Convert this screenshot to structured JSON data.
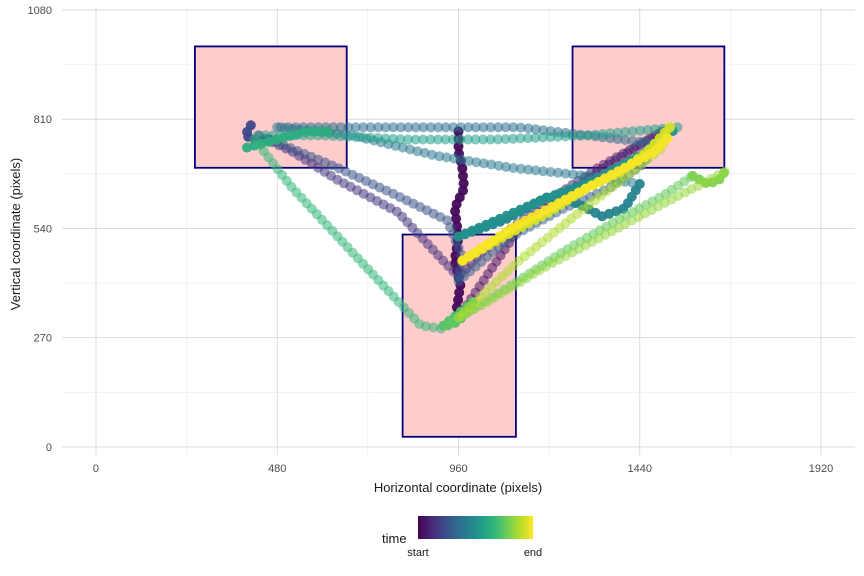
{
  "chart_data": {
    "type": "scatter",
    "xlabel": "Horizontal coordinate (pixels)",
    "ylabel": "Vertical coordinate (pixels)",
    "xlim": [
      -90,
      2010
    ],
    "ylim": [
      -20,
      1085
    ],
    "x_ticks": [
      0,
      480,
      960,
      1440,
      1920
    ],
    "y_ticks": [
      0,
      270,
      540,
      810,
      1080
    ],
    "grid": true,
    "legend": {
      "title": "time",
      "start_label": "start",
      "end_label": "end",
      "position": "bottom"
    },
    "colors": {
      "rect_fill": "#ffcccc",
      "rect_stroke": "#00007f",
      "viridis": [
        "#440154",
        "#482878",
        "#3e4989",
        "#31688e",
        "#26828e",
        "#1f9e89",
        "#35b779",
        "#6ece58",
        "#b5de2b",
        "#fde725"
      ]
    },
    "rectangles": [
      {
        "x0": 262,
        "x1": 664,
        "y0": 690,
        "y1": 990
      },
      {
        "x0": 1262,
        "x1": 1664,
        "y0": 690,
        "y1": 990
      },
      {
        "x0": 812,
        "x1": 1112,
        "y0": 25,
        "y1": 525
      }
    ],
    "trajectories": [
      {
        "t": 0.02,
        "opacity": 0.95,
        "size": 5,
        "points": [
          [
            960,
            780
          ],
          [
            960,
            730
          ],
          [
            970,
            690
          ],
          [
            975,
            640
          ],
          [
            950,
            590
          ],
          [
            960,
            520
          ],
          [
            950,
            460
          ],
          [
            965,
            400
          ],
          [
            955,
            340
          ],
          [
            960,
            310
          ]
        ]
      },
      {
        "t": 0.06,
        "opacity": 0.55,
        "size": 5,
        "points": [
          [
            960,
            320
          ],
          [
            1040,
            430
          ],
          [
            1120,
            540
          ],
          [
            1240,
            620
          ],
          [
            1360,
            700
          ],
          [
            1500,
            780
          ]
        ]
      },
      {
        "t": 0.1,
        "opacity": 0.55,
        "size": 5,
        "points": [
          [
            1500,
            780
          ],
          [
            1330,
            690
          ],
          [
            1200,
            610
          ],
          [
            1100,
            540
          ],
          [
            1020,
            480
          ],
          [
            960,
            420
          ]
        ]
      },
      {
        "t": 0.15,
        "opacity": 0.55,
        "size": 5,
        "points": [
          [
            960,
            420
          ],
          [
            800,
            580
          ],
          [
            640,
            660
          ],
          [
            520,
            730
          ],
          [
            420,
            775
          ]
        ]
      },
      {
        "t": 0.22,
        "opacity": 0.95,
        "size": 5,
        "points": [
          [
            410,
            795
          ],
          [
            395,
            770
          ],
          [
            430,
            755
          ],
          [
            460,
            760
          ]
        ]
      },
      {
        "t": 0.26,
        "opacity": 0.55,
        "size": 5,
        "points": [
          [
            460,
            760
          ],
          [
            640,
            690
          ],
          [
            800,
            620
          ],
          [
            930,
            560
          ],
          [
            970,
            470
          ],
          [
            960,
            410
          ]
        ]
      },
      {
        "t": 0.3,
        "opacity": 0.55,
        "size": 5,
        "points": [
          [
            960,
            410
          ],
          [
            1100,
            520
          ],
          [
            1240,
            590
          ],
          [
            1360,
            640
          ],
          [
            1450,
            700
          ],
          [
            1480,
            750
          ]
        ]
      },
      {
        "t": 0.36,
        "opacity": 0.55,
        "size": 5,
        "points": [
          [
            1480,
            750
          ],
          [
            1300,
            770
          ],
          [
            1120,
            790
          ],
          [
            900,
            790
          ],
          [
            680,
            790
          ],
          [
            480,
            790
          ]
        ]
      },
      {
        "t": 0.4,
        "opacity": 0.55,
        "size": 5,
        "points": [
          [
            480,
            790
          ],
          [
            680,
            770
          ],
          [
            900,
            720
          ],
          [
            1100,
            690
          ],
          [
            1300,
            670
          ],
          [
            1440,
            650
          ]
        ]
      },
      {
        "t": 0.45,
        "opacity": 0.95,
        "size": 5,
        "points": [
          [
            1440,
            650
          ],
          [
            1400,
            590
          ],
          [
            1340,
            570
          ],
          [
            1280,
            600
          ],
          [
            1200,
            620
          ],
          [
            1080,
            560
          ],
          [
            960,
            520
          ]
        ]
      },
      {
        "t": 0.5,
        "opacity": 0.95,
        "size": 5,
        "points": [
          [
            960,
            520
          ],
          [
            1060,
            560
          ],
          [
            1180,
            610
          ],
          [
            1320,
            660
          ],
          [
            1460,
            730
          ],
          [
            1540,
            790
          ]
        ]
      },
      {
        "t": 0.56,
        "opacity": 0.55,
        "size": 5,
        "points": [
          [
            1540,
            790
          ],
          [
            1300,
            770
          ],
          [
            1060,
            760
          ],
          [
            820,
            760
          ],
          [
            600,
            770
          ],
          [
            420,
            770
          ]
        ]
      },
      {
        "t": 0.62,
        "opacity": 0.95,
        "size": 5,
        "points": [
          [
            400,
            740
          ],
          [
            480,
            760
          ],
          [
            560,
            780
          ],
          [
            620,
            780
          ]
        ]
      },
      {
        "t": 0.66,
        "opacity": 0.55,
        "size": 5,
        "points": [
          [
            420,
            760
          ],
          [
            520,
            640
          ],
          [
            640,
            520
          ],
          [
            760,
            400
          ],
          [
            860,
            300
          ],
          [
            930,
            290
          ]
        ]
      },
      {
        "t": 0.72,
        "opacity": 0.95,
        "size": 5,
        "points": [
          [
            920,
            300
          ],
          [
            960,
            330
          ],
          [
            1000,
            360
          ],
          [
            960,
            310
          ],
          [
            930,
            300
          ]
        ]
      },
      {
        "t": 0.76,
        "opacity": 0.55,
        "size": 5,
        "points": [
          [
            930,
            300
          ],
          [
            1100,
            400
          ],
          [
            1250,
            490
          ],
          [
            1380,
            560
          ],
          [
            1500,
            620
          ],
          [
            1580,
            670
          ]
        ]
      },
      {
        "t": 0.8,
        "opacity": 0.95,
        "size": 5,
        "points": [
          [
            1580,
            670
          ],
          [
            1620,
            650
          ],
          [
            1650,
            660
          ],
          [
            1665,
            680
          ]
        ]
      },
      {
        "t": 0.84,
        "opacity": 0.55,
        "size": 5,
        "points": [
          [
            1665,
            680
          ],
          [
            1500,
            600
          ],
          [
            1340,
            520
          ],
          [
            1180,
            440
          ],
          [
            1040,
            360
          ],
          [
            960,
            320
          ]
        ]
      },
      {
        "t": 0.88,
        "opacity": 0.55,
        "size": 5,
        "points": [
          [
            960,
            320
          ],
          [
            1120,
            460
          ],
          [
            1280,
            580
          ],
          [
            1420,
            680
          ],
          [
            1500,
            740
          ],
          [
            1520,
            800
          ]
        ]
      },
      {
        "t": 0.94,
        "opacity": 0.95,
        "size": 5,
        "points": [
          [
            1520,
            790
          ],
          [
            1460,
            730
          ],
          [
            1390,
            680
          ],
          [
            1300,
            640
          ],
          [
            1200,
            580
          ],
          [
            1080,
            520
          ],
          [
            970,
            460
          ]
        ]
      },
      {
        "t": 0.99,
        "opacity": 0.95,
        "size": 5,
        "points": [
          [
            970,
            460
          ],
          [
            1100,
            540
          ],
          [
            1240,
            610
          ],
          [
            1380,
            680
          ],
          [
            1480,
            730
          ],
          [
            1520,
            770
          ]
        ]
      }
    ]
  }
}
